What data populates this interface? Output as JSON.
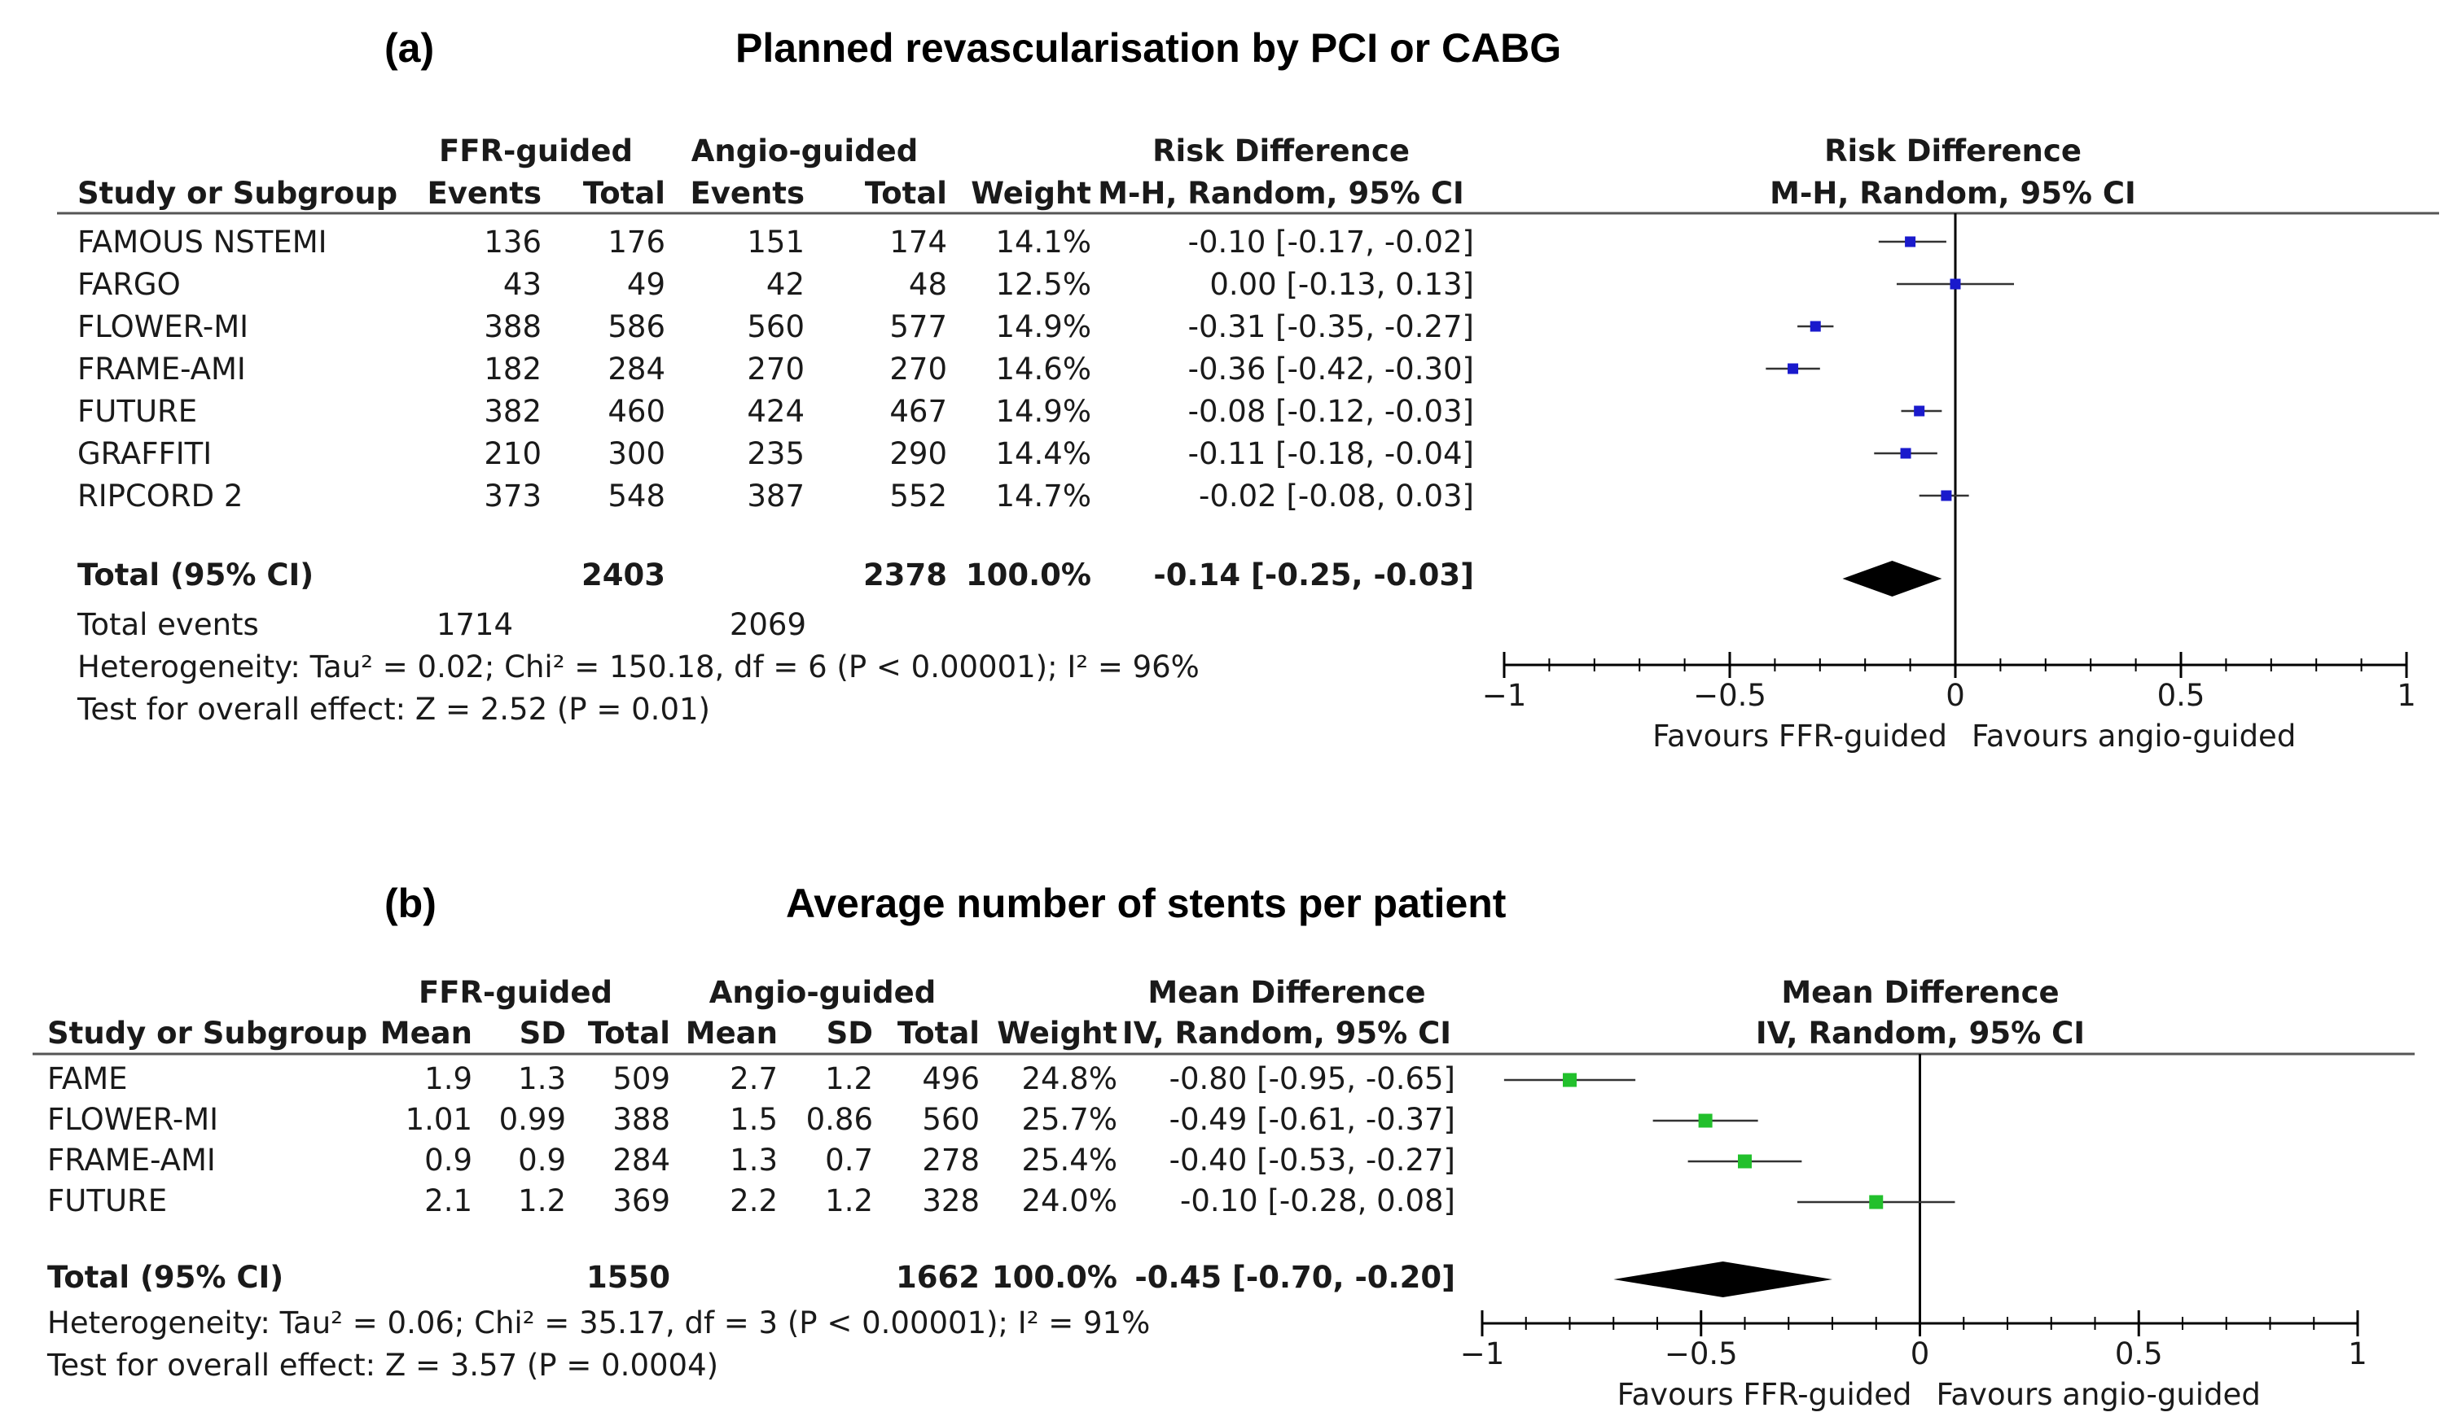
{
  "chart_data": [
    {
      "type": "forest",
      "panel_label": "(a)",
      "title": "Planned revascularisation by PCI or CABG",
      "effect_label": "Risk Difference",
      "method": "M-H, Random, 95% CI",
      "group1": "FFR-guided",
      "group2": "Angio-guided",
      "columns": [
        "Study or Subgroup",
        "Events",
        "Total",
        "Events",
        "Total",
        "Weight",
        "M-H, Random, 95% CI"
      ],
      "studies": [
        {
          "name": "FAMOUS NSTEMI",
          "g1": [
            "136",
            "176"
          ],
          "g2": [
            "151",
            "174"
          ],
          "weight": "14.1%",
          "ci_text": "-0.10 [-0.17, -0.02]",
          "est": -0.1,
          "lo": -0.17,
          "hi": -0.02
        },
        {
          "name": "FARGO",
          "g1": [
            "43",
            "49"
          ],
          "g2": [
            "42",
            "48"
          ],
          "weight": "12.5%",
          "ci_text": "0.00 [-0.13, 0.13]",
          "est": 0.0,
          "lo": -0.13,
          "hi": 0.13
        },
        {
          "name": "FLOWER-MI",
          "g1": [
            "388",
            "586"
          ],
          "g2": [
            "560",
            "577"
          ],
          "weight": "14.9%",
          "ci_text": "-0.31 [-0.35, -0.27]",
          "est": -0.31,
          "lo": -0.35,
          "hi": -0.27
        },
        {
          "name": "FRAME-AMI",
          "g1": [
            "182",
            "284"
          ],
          "g2": [
            "270",
            "270"
          ],
          "weight": "14.6%",
          "ci_text": "-0.36 [-0.42, -0.30]",
          "est": -0.36,
          "lo": -0.42,
          "hi": -0.3
        },
        {
          "name": "FUTURE",
          "g1": [
            "382",
            "460"
          ],
          "g2": [
            "424",
            "467"
          ],
          "weight": "14.9%",
          "ci_text": "-0.08 [-0.12, -0.03]",
          "est": -0.08,
          "lo": -0.12,
          "hi": -0.03
        },
        {
          "name": "GRAFFITI",
          "g1": [
            "210",
            "300"
          ],
          "g2": [
            "235",
            "290"
          ],
          "weight": "14.4%",
          "ci_text": "-0.11 [-0.18, -0.04]",
          "est": -0.11,
          "lo": -0.18,
          "hi": -0.04
        },
        {
          "name": "RIPCORD 2",
          "g1": [
            "373",
            "548"
          ],
          "g2": [
            "387",
            "552"
          ],
          "weight": "14.7%",
          "ci_text": "-0.02 [-0.08, 0.03]",
          "est": -0.02,
          "lo": -0.08,
          "hi": 0.03
        }
      ],
      "total": {
        "label": "Total (95% CI)",
        "g1": [
          "",
          "2403"
        ],
        "g2": [
          "",
          "2378"
        ],
        "weight": "100.0%",
        "ci_text": "-0.14 [-0.25, -0.03]",
        "est": -0.14,
        "lo": -0.25,
        "hi": -0.03
      },
      "total_events": {
        "label": "Total events",
        "g1": "1714",
        "g2": "2069"
      },
      "heterogeneity": "Heterogeneity: Tau² = 0.02; Chi² = 150.18, df = 6 (P < 0.00001); I² = 96%",
      "overall": "Test for overall effect: Z = 2.52 (P = 0.01)",
      "xlim": [
        -1,
        1
      ],
      "ticks": [
        -1,
        -0.5,
        0,
        0.5,
        1
      ],
      "tick_labels": [
        "−1",
        "−0.5",
        "0",
        "0.5",
        "1"
      ],
      "favours_left": "Favours FFR-guided",
      "favours_right": "Favours angio-guided",
      "marker_color": "#1a1acc"
    },
    {
      "type": "forest",
      "panel_label": "(b)",
      "title": "Average number of stents per patient",
      "effect_label": "Mean Difference",
      "method": "IV, Random, 95% CI",
      "group1": "FFR-guided",
      "group2": "Angio-guided",
      "columns": [
        "Study or Subgroup",
        "Mean",
        "SD",
        "Total",
        "Mean",
        "SD",
        "Total",
        "Weight",
        "IV, Random, 95% CI"
      ],
      "studies": [
        {
          "name": "FAME",
          "g1": [
            "1.9",
            "1.3",
            "509"
          ],
          "g2": [
            "2.7",
            "1.2",
            "496"
          ],
          "weight": "24.8%",
          "ci_text": "-0.80 [-0.95, -0.65]",
          "est": -0.8,
          "lo": -0.95,
          "hi": -0.65
        },
        {
          "name": "FLOWER-MI",
          "g1": [
            "1.01",
            "0.99",
            "388"
          ],
          "g2": [
            "1.5",
            "0.86",
            "560"
          ],
          "weight": "25.7%",
          "ci_text": "-0.49 [-0.61, -0.37]",
          "est": -0.49,
          "lo": -0.61,
          "hi": -0.37
        },
        {
          "name": "FRAME-AMI",
          "g1": [
            "0.9",
            "0.9",
            "284"
          ],
          "g2": [
            "1.3",
            "0.7",
            "278"
          ],
          "weight": "25.4%",
          "ci_text": "-0.40 [-0.53, -0.27]",
          "est": -0.4,
          "lo": -0.53,
          "hi": -0.27
        },
        {
          "name": "FUTURE",
          "g1": [
            "2.1",
            "1.2",
            "369"
          ],
          "g2": [
            "2.2",
            "1.2",
            "328"
          ],
          "weight": "24.0%",
          "ci_text": "-0.10 [-0.28, 0.08]",
          "est": -0.1,
          "lo": -0.28,
          "hi": 0.08
        }
      ],
      "total": {
        "label": "Total (95% CI)",
        "g1": [
          "",
          "",
          "1550"
        ],
        "g2": [
          "",
          "",
          "1662"
        ],
        "weight": "100.0%",
        "ci_text": "-0.45 [-0.70, -0.20]",
        "est": -0.45,
        "lo": -0.7,
        "hi": -0.2
      },
      "heterogeneity": "Heterogeneity: Tau² = 0.06; Chi² = 35.17, df = 3 (P < 0.00001); I² = 91%",
      "overall": "Test for overall effect: Z = 3.57 (P = 0.0004)",
      "xlim": [
        -1,
        1
      ],
      "ticks": [
        -1,
        -0.5,
        0,
        0.5,
        1
      ],
      "tick_labels": [
        "−1",
        "−0.5",
        "0",
        "0.5",
        "1"
      ],
      "favours_left": "Favours FFR-guided",
      "favours_right": "Favours angio-guided",
      "marker_color": "#22c02c"
    }
  ]
}
